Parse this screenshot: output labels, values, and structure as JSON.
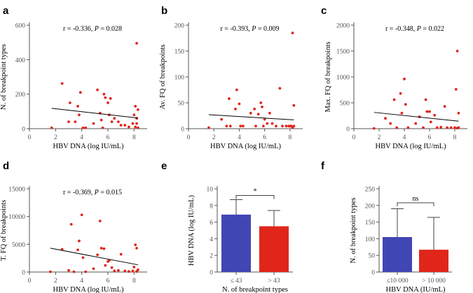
{
  "chart_data": [
    {
      "id": "a",
      "type": "scatter",
      "panel_label": "a",
      "title": "r = -0.336, P = 0.028",
      "annotation_prefix": "r = -0.336, ",
      "annotation_italic": "P",
      "annotation_suffix": " = 0.028",
      "xlabel": "HBV DNA (log IU/mL)",
      "ylabel": "N. of breakpoint types",
      "xlim": [
        0,
        9
      ],
      "ylim": [
        0,
        600
      ],
      "xticks": [
        0,
        2,
        4,
        6,
        8
      ],
      "yticks": [
        0,
        200,
        400,
        600
      ],
      "points": [
        [
          1.7,
          5
        ],
        [
          2.5,
          262
        ],
        [
          3.0,
          40
        ],
        [
          3.1,
          150
        ],
        [
          3.5,
          40
        ],
        [
          3.7,
          130
        ],
        [
          3.8,
          80
        ],
        [
          3.9,
          210
        ],
        [
          4.1,
          5
        ],
        [
          4.3,
          5
        ],
        [
          4.9,
          30
        ],
        [
          5.2,
          225
        ],
        [
          5.4,
          90
        ],
        [
          5.5,
          50
        ],
        [
          5.6,
          5
        ],
        [
          5.7,
          200
        ],
        [
          5.8,
          180
        ],
        [
          6.0,
          150
        ],
        [
          6.1,
          80
        ],
        [
          6.2,
          175
        ],
        [
          6.3,
          40
        ],
        [
          6.5,
          60
        ],
        [
          6.8,
          40
        ],
        [
          7.0,
          20
        ],
        [
          7.3,
          20
        ],
        [
          7.6,
          10
        ],
        [
          7.9,
          30
        ],
        [
          8.0,
          80
        ],
        [
          8.1,
          130
        ],
        [
          8.1,
          10
        ],
        [
          8.2,
          495
        ],
        [
          8.2,
          60
        ],
        [
          8.3,
          110
        ],
        [
          8.3,
          5
        ],
        [
          8.2,
          30
        ]
      ],
      "fit": [
        [
          1.7,
          118
        ],
        [
          8.3,
          62
        ]
      ]
    },
    {
      "id": "b",
      "type": "scatter",
      "panel_label": "b",
      "title": "r = -0.393, P = 0.009",
      "annotation_prefix": "r = -0.393, ",
      "annotation_italic": "P",
      "annotation_suffix": " = 0.009",
      "xlabel": "HBV DNA (log IU/mL)",
      "ylabel": "Av. FQ of breakpoints",
      "xlim": [
        0,
        9
      ],
      "ylim": [
        0,
        200
      ],
      "xticks": [
        0,
        2,
        4,
        6,
        8
      ],
      "yticks": [
        0,
        50,
        100,
        150,
        200
      ],
      "points": [
        [
          1.6,
          2
        ],
        [
          2.6,
          18
        ],
        [
          3.0,
          5
        ],
        [
          3.2,
          58
        ],
        [
          3.3,
          5
        ],
        [
          3.7,
          38
        ],
        [
          3.8,
          75
        ],
        [
          4.0,
          48
        ],
        [
          4.1,
          5
        ],
        [
          4.3,
          5
        ],
        [
          4.9,
          30
        ],
        [
          5.2,
          38
        ],
        [
          5.3,
          5
        ],
        [
          5.5,
          28
        ],
        [
          5.7,
          50
        ],
        [
          5.8,
          42
        ],
        [
          5.9,
          5
        ],
        [
          6.0,
          18
        ],
        [
          6.2,
          10
        ],
        [
          6.4,
          30
        ],
        [
          6.6,
          10
        ],
        [
          6.9,
          5
        ],
        [
          7.2,
          78
        ],
        [
          7.4,
          5
        ],
        [
          7.7,
          5
        ],
        [
          7.9,
          5
        ],
        [
          8.0,
          5
        ],
        [
          8.1,
          5
        ],
        [
          8.2,
          185
        ],
        [
          8.3,
          45
        ],
        [
          8.3,
          5
        ],
        [
          8.2,
          2
        ]
      ],
      "fit": [
        [
          1.6,
          27
        ],
        [
          8.3,
          17
        ]
      ]
    },
    {
      "id": "c",
      "type": "scatter",
      "panel_label": "c",
      "title": "r = -0.348, P = 0.022",
      "annotation_prefix": "r = -0.348, ",
      "annotation_italic": "P",
      "annotation_suffix": " = 0.022",
      "xlabel": "HBV DNA (log IU/mL)",
      "ylabel": "Max. FQ of breakpoints",
      "xlim": [
        0,
        9
      ],
      "ylim": [
        0,
        2000
      ],
      "xticks": [
        0,
        2,
        4,
        6,
        8
      ],
      "yticks": [
        0,
        500,
        1000,
        1500,
        2000
      ],
      "points": [
        [
          1.6,
          5
        ],
        [
          2.5,
          200
        ],
        [
          2.9,
          100
        ],
        [
          3.2,
          560
        ],
        [
          3.4,
          20
        ],
        [
          3.7,
          680
        ],
        [
          3.8,
          300
        ],
        [
          4.0,
          960
        ],
        [
          4.1,
          470
        ],
        [
          4.3,
          20
        ],
        [
          4.9,
          100
        ],
        [
          5.2,
          230
        ],
        [
          5.5,
          20
        ],
        [
          5.7,
          560
        ],
        [
          5.8,
          330
        ],
        [
          6.0,
          330
        ],
        [
          6.1,
          130
        ],
        [
          6.4,
          260
        ],
        [
          6.6,
          20
        ],
        [
          6.9,
          30
        ],
        [
          7.2,
          430
        ],
        [
          7.4,
          20
        ],
        [
          7.7,
          20
        ],
        [
          8.0,
          20
        ],
        [
          8.1,
          760
        ],
        [
          8.2,
          1500
        ],
        [
          8.3,
          300
        ],
        [
          8.3,
          20
        ],
        [
          8.2,
          10
        ]
      ],
      "fit": [
        [
          1.6,
          315
        ],
        [
          8.3,
          145
        ]
      ]
    },
    {
      "id": "d",
      "type": "scatter",
      "panel_label": "d",
      "title": "r = -0.369, P = 0.015",
      "annotation_prefix": "r = -0.369, ",
      "annotation_italic": "P",
      "annotation_suffix": " = 0.015",
      "xlabel": "HBV DNA (log IU/mL)",
      "ylabel": "T. FQ of breakpoints",
      "xlim": [
        0,
        9
      ],
      "ylim": [
        0,
        15000
      ],
      "xticks": [
        0,
        2,
        4,
        6,
        8
      ],
      "yticks": [
        0,
        5000,
        10000,
        15000
      ],
      "points": [
        [
          1.6,
          50
        ],
        [
          2.5,
          4100
        ],
        [
          3.0,
          300
        ],
        [
          3.2,
          8600
        ],
        [
          3.4,
          50
        ],
        [
          3.7,
          4000
        ],
        [
          3.8,
          5600
        ],
        [
          4.0,
          10300
        ],
        [
          4.1,
          2600
        ],
        [
          4.3,
          50
        ],
        [
          4.9,
          600
        ],
        [
          5.2,
          3100
        ],
        [
          5.4,
          9200
        ],
        [
          5.5,
          4300
        ],
        [
          5.7,
          4200
        ],
        [
          5.8,
          1200
        ],
        [
          6.0,
          1900
        ],
        [
          6.1,
          2100
        ],
        [
          6.3,
          800
        ],
        [
          6.5,
          200
        ],
        [
          6.8,
          300
        ],
        [
          7.0,
          3200
        ],
        [
          7.3,
          200
        ],
        [
          7.6,
          100
        ],
        [
          7.9,
          200
        ],
        [
          8.0,
          900
        ],
        [
          8.1,
          4900
        ],
        [
          8.2,
          4300
        ],
        [
          8.3,
          400
        ],
        [
          8.2,
          100
        ]
      ],
      "fit": [
        [
          1.6,
          4300
        ],
        [
          8.3,
          1300
        ]
      ]
    },
    {
      "id": "e",
      "type": "bar",
      "panel_label": "e",
      "title": "",
      "xlabel": "N. of breakpoint types",
      "ylabel": "HBV DNA (log IU/mL)",
      "ylim": [
        0,
        10
      ],
      "yticks": [
        0,
        2,
        4,
        6,
        8,
        10
      ],
      "categories": [
        "≤ 43",
        "> 43"
      ],
      "values": [
        6.9,
        5.5
      ],
      "errors": [
        1.8,
        1.9
      ],
      "colors": [
        "#4146b5",
        "#e0261b"
      ],
      "significance": "*",
      "bracket_y": 9.2
    },
    {
      "id": "f",
      "type": "bar",
      "panel_label": "f",
      "title": "",
      "xlabel": "HBV DNA (IU/mL)",
      "ylabel": "N. of breakpoint types",
      "ylim": [
        0,
        250
      ],
      "yticks": [
        0,
        50,
        100,
        150,
        200,
        250
      ],
      "categories": [
        "≤10 000",
        "> 10 000"
      ],
      "values": [
        105,
        67
      ],
      "errors": [
        85,
        97
      ],
      "colors": [
        "#4146b5",
        "#e0261b"
      ],
      "significance": "ns",
      "bracket_y": 208
    }
  ],
  "colors": {
    "point": "#e0261b",
    "axis": "#555555",
    "fit": "#000000"
  }
}
